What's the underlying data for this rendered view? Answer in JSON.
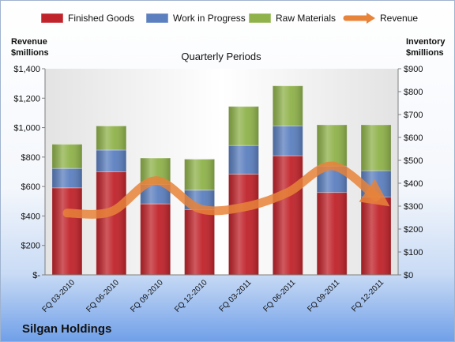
{
  "chart_data": {
    "type": "bar",
    "subtitle": "Quarterly Periods",
    "footer_title": "Silgan Holdings",
    "left_axis_label": [
      "Revenue",
      "$millions"
    ],
    "right_axis_label": [
      "Inventory",
      "$millions"
    ],
    "categories": [
      "FQ 03-2010",
      "FQ 06-2010",
      "FQ 09-2010",
      "FQ 12-2010",
      "FQ 03-2011",
      "FQ 06-2011",
      "FQ 09-2011",
      "FQ 12-2011"
    ],
    "series": [
      {
        "name": "Finished Goods",
        "axis": "right",
        "color": "#c0232a",
        "values": [
          380,
          450,
          310,
          285,
          440,
          520,
          360,
          340
        ]
      },
      {
        "name": "Work in Progress",
        "axis": "right",
        "color": "#5b7fbf",
        "values": [
          85,
          95,
          85,
          85,
          125,
          130,
          115,
          115
        ]
      },
      {
        "name": "Raw Materials",
        "axis": "right",
        "color": "#8fb24a",
        "values": [
          105,
          105,
          115,
          135,
          170,
          175,
          180,
          200
        ]
      },
      {
        "name": "Revenue",
        "axis": "left",
        "type": "line",
        "color": "#e8833a",
        "values": [
          420,
          430,
          640,
          450,
          460,
          560,
          740,
          530
        ]
      }
    ],
    "y_left": {
      "min": 0,
      "max": 1400,
      "ticks": [
        "$-",
        "$200",
        "$400",
        "$600",
        "$800",
        "$1,000",
        "$1,200",
        "$1,400"
      ]
    },
    "y_right": {
      "min": 0,
      "max": 900,
      "ticks": [
        "$0",
        "$100",
        "$200",
        "$300",
        "$400",
        "$500",
        "$600",
        "$700",
        "$800",
        "$900"
      ]
    },
    "legend_position": "top",
    "grid": false
  }
}
